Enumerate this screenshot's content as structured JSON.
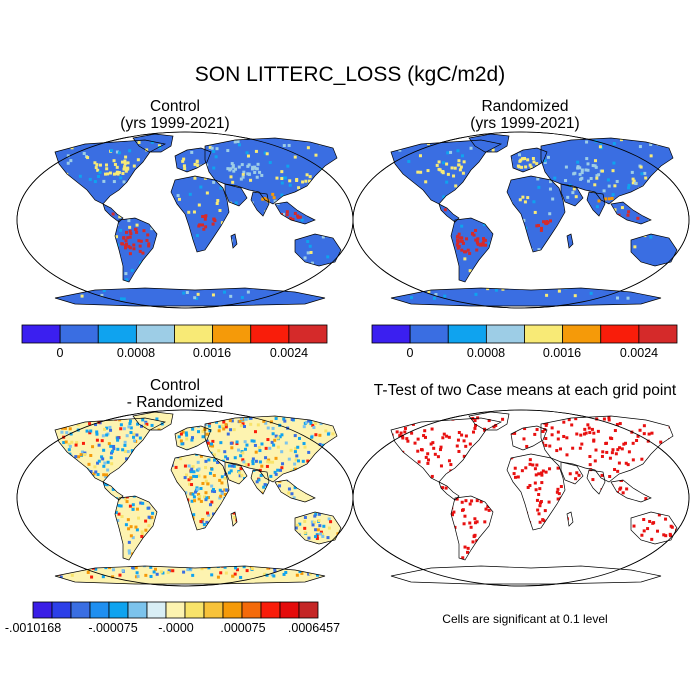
{
  "title": "SON LITTERC_LOSS (kgC/m2d)",
  "panels": {
    "control": {
      "title": "Control",
      "subtitle": "(yrs 1999-2021)"
    },
    "randomized": {
      "title": "Randomized",
      "subtitle": "(yrs 1999-2021)"
    },
    "difference": {
      "title": "Control",
      "subtitle": "- Randomized"
    },
    "ttest": {
      "title": "T-Test of two Case means at each grid point"
    }
  },
  "colorbar_main": {
    "colors": [
      "#3b1ff0",
      "#3a6ee2",
      "#0fa3ef",
      "#9dcde6",
      "#f8ea76",
      "#f59a09",
      "#f91d0a",
      "#d52a2a"
    ],
    "ticks": [
      "0",
      "0.0008",
      "0.0016",
      "0.0024"
    ]
  },
  "colorbar_diff": {
    "colors": [
      "#3a1ee6",
      "#2c3fe8",
      "#3a6ee2",
      "#1f8ff0",
      "#0fa3ef",
      "#7cc3ec",
      "#d9eef5",
      "#fdf3b0",
      "#f8e36a",
      "#f7c23a",
      "#f59a09",
      "#f46a0a",
      "#f91d0a",
      "#e40b0b",
      "#c42626"
    ],
    "ticks": [
      "-.0010168",
      "-.000075",
      "-.0000",
      ".000075",
      ".0006457"
    ]
  },
  "footnote": "Cells are significant at 0.1 level",
  "colors": {
    "ocean": "#ffffff",
    "land_control": "#3a6ee2",
    "tropics_high": "#d52a2a",
    "midlat": "#f8ea76",
    "diff_land": "#fdf3b0",
    "signif": "#e81010"
  }
}
